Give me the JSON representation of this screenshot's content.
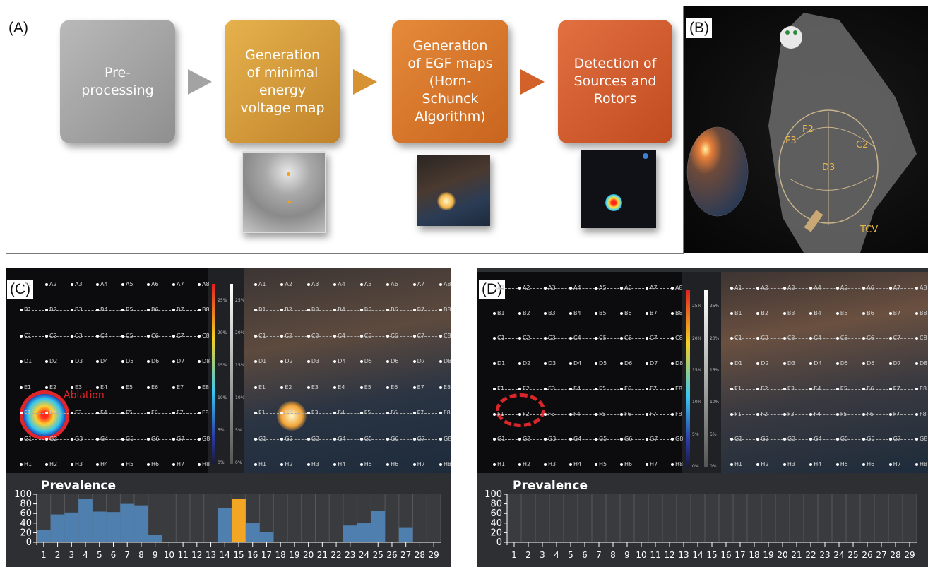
{
  "panels": {
    "a": "(A)",
    "b": "(B)",
    "c": "(C)",
    "d": "(D)"
  },
  "flow": {
    "step1": "Pre-\nprocessing",
    "step2": "Generation\nof minimal\nenergy\nvoltage map",
    "step3": "Generation\nof EGF maps\n(Horn-\nSchunck\nAlgorithm)",
    "step4": "Detection of\nSources and\nRotors"
  },
  "catheter_labels": {
    "f2": "F2",
    "f3": "F3",
    "c2": "C2",
    "d3": "D3",
    "tcv": "TCV"
  },
  "grid": {
    "rows": [
      "A",
      "B",
      "C",
      "D",
      "E",
      "F",
      "G",
      "H"
    ],
    "cols": [
      "1",
      "2",
      "3",
      "4",
      "5",
      "6",
      "7",
      "8"
    ]
  },
  "scale_ticks": [
    "25%",
    "20%",
    "15%",
    "10%",
    "5%",
    "0%"
  ],
  "annotations": {
    "ablation": "Ablation"
  },
  "chart_data": [
    {
      "type": "bar",
      "title": "Prevalence",
      "categories": [
        "1",
        "2",
        "3",
        "4",
        "5",
        "6",
        "7",
        "8",
        "9",
        "10",
        "11",
        "12",
        "13",
        "14",
        "15",
        "16",
        "17",
        "18",
        "19",
        "20",
        "21",
        "22",
        "23",
        "24",
        "25",
        "26",
        "27",
        "28",
        "29"
      ],
      "values": [
        25,
        58,
        62,
        90,
        64,
        63,
        80,
        77,
        15,
        0,
        0,
        0,
        0,
        72,
        90,
        40,
        22,
        0,
        0,
        0,
        0,
        0,
        35,
        40,
        65,
        0,
        30,
        0,
        0
      ],
      "highlight_index": 14,
      "ylim": [
        0,
        100
      ],
      "yticks": [
        "100",
        "80",
        "60",
        "40",
        "20",
        "0"
      ],
      "colors": {
        "bar": "#4f7fae",
        "highlight": "#f3a623"
      }
    },
    {
      "type": "bar",
      "title": "Prevalence",
      "categories": [
        "1",
        "2",
        "3",
        "4",
        "5",
        "6",
        "7",
        "8",
        "9",
        "10",
        "11",
        "12",
        "13",
        "14",
        "15",
        "16",
        "17",
        "18",
        "19",
        "20",
        "21",
        "22",
        "23",
        "24",
        "25",
        "26",
        "27",
        "28",
        "29"
      ],
      "values": [
        0,
        0,
        0,
        0,
        0,
        0,
        0,
        0,
        0,
        0,
        0,
        0,
        0,
        0,
        0,
        0,
        0,
        0,
        0,
        0,
        0,
        0,
        0,
        0,
        0,
        0,
        0,
        0,
        0
      ],
      "ylim": [
        0,
        100
      ],
      "yticks": [
        "100",
        "80",
        "60",
        "40",
        "20",
        "0"
      ],
      "colors": {
        "bar": "#4f7fae"
      }
    }
  ]
}
